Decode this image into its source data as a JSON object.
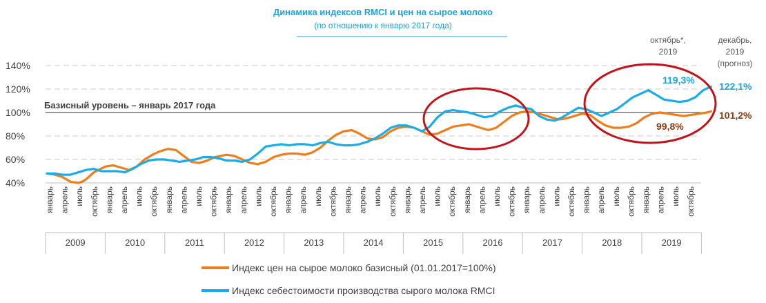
{
  "chart_data": {
    "type": "line",
    "title": "Динамика индексов RMCI и цен на сырое молоко",
    "subtitle": "(по отношению к январю 2017 года)",
    "y_ticks": [
      "40%",
      "60%",
      "80%",
      "100%",
      "120%",
      "140%"
    ],
    "ylim": [
      40,
      140
    ],
    "grid": "horizontal-dashed",
    "baseline": {
      "value": 100,
      "label": "Базисный уровень – январь 2017 года"
    },
    "month_tick_labels": [
      "январь",
      "апрель",
      "июль",
      "октябрь"
    ],
    "years": [
      "2009",
      "2010",
      "2011",
      "2012",
      "2013",
      "2014",
      "2015",
      "2016",
      "2017",
      "2018",
      "2019"
    ],
    "corner_labels": [
      {
        "lines": [
          "октябрь*,",
          "2019"
        ]
      },
      {
        "lines": [
          "декабрь,",
          "2019",
          "(прогноз)"
        ]
      }
    ],
    "value_labels": {
      "blue_oct": "119,3%",
      "blue_dec": "122,1%",
      "orange_oct": "99,8%",
      "orange_dec": "101,2%"
    },
    "legend_position": "bottom",
    "series": [
      {
        "name": "Индекс цен на сырое молоко базисный (01.01.2017=100%)",
        "color": "#f07d1a",
        "key_points": [
          [
            0,
            48
          ],
          [
            2,
            47
          ],
          [
            4,
            45
          ],
          [
            6,
            41
          ],
          [
            8,
            40
          ],
          [
            9,
            41
          ],
          [
            10,
            43
          ],
          [
            12,
            49
          ],
          [
            15,
            54
          ],
          [
            17,
            55
          ],
          [
            19,
            53
          ],
          [
            21,
            51
          ],
          [
            23,
            54
          ],
          [
            25,
            60
          ],
          [
            27,
            64
          ],
          [
            29,
            67
          ],
          [
            31,
            69
          ],
          [
            33,
            68
          ],
          [
            35,
            63
          ],
          [
            37,
            58
          ],
          [
            39,
            57
          ],
          [
            41,
            59
          ],
          [
            43,
            62
          ],
          [
            46,
            64
          ],
          [
            48,
            63
          ],
          [
            50,
            60
          ],
          [
            52,
            57
          ],
          [
            54,
            56
          ],
          [
            56,
            58
          ],
          [
            58,
            62
          ],
          [
            60,
            64
          ],
          [
            62,
            65
          ],
          [
            64,
            65
          ],
          [
            66,
            64
          ],
          [
            68,
            66
          ],
          [
            70,
            70
          ],
          [
            72,
            76
          ],
          [
            74,
            81
          ],
          [
            76,
            84
          ],
          [
            78,
            85
          ],
          [
            80,
            82
          ],
          [
            82,
            78
          ],
          [
            84,
            77
          ],
          [
            86,
            79
          ],
          [
            88,
            84
          ],
          [
            90,
            87
          ],
          [
            92,
            88
          ],
          [
            94,
            87
          ],
          [
            96,
            84
          ],
          [
            98,
            81
          ],
          [
            100,
            82
          ],
          [
            102,
            85
          ],
          [
            104,
            88
          ],
          [
            106,
            89
          ],
          [
            108,
            90
          ],
          [
            109,
            89
          ],
          [
            111,
            87
          ],
          [
            113,
            85
          ],
          [
            115,
            87
          ],
          [
            117,
            92
          ],
          [
            119,
            97
          ],
          [
            121,
            100
          ],
          [
            123,
            101
          ],
          [
            125,
            100
          ],
          [
            127,
            98
          ],
          [
            129,
            96
          ],
          [
            131,
            94
          ],
          [
            133,
            95
          ],
          [
            135,
            97
          ],
          [
            137,
            99
          ],
          [
            139,
            98
          ],
          [
            141,
            93
          ],
          [
            143,
            89
          ],
          [
            145,
            87
          ],
          [
            147,
            87
          ],
          [
            149,
            88
          ],
          [
            151,
            91
          ],
          [
            153,
            96
          ],
          [
            155,
            99
          ],
          [
            157,
            100
          ],
          [
            159,
            99
          ],
          [
            161,
            98
          ],
          [
            163,
            97
          ],
          [
            165,
            98
          ],
          [
            167,
            99
          ],
          [
            169,
            100
          ],
          [
            170,
            101
          ]
        ]
      },
      {
        "name": "Индекс себестоимости производства сырого молока RMCI",
        "color": "#1aace6",
        "key_points": [
          [
            0,
            48
          ],
          [
            2,
            48
          ],
          [
            4,
            47
          ],
          [
            6,
            47
          ],
          [
            8,
            49
          ],
          [
            10,
            51
          ],
          [
            12,
            52
          ],
          [
            14,
            50
          ],
          [
            16,
            50
          ],
          [
            18,
            50
          ],
          [
            20,
            49
          ],
          [
            22,
            52
          ],
          [
            24,
            56
          ],
          [
            26,
            59
          ],
          [
            28,
            60
          ],
          [
            30,
            60
          ],
          [
            32,
            59
          ],
          [
            34,
            58
          ],
          [
            36,
            59
          ],
          [
            38,
            60
          ],
          [
            40,
            62
          ],
          [
            42,
            62
          ],
          [
            44,
            61
          ],
          [
            46,
            59
          ],
          [
            48,
            59
          ],
          [
            50,
            58
          ],
          [
            52,
            60
          ],
          [
            54,
            65
          ],
          [
            56,
            71
          ],
          [
            58,
            72
          ],
          [
            60,
            73
          ],
          [
            62,
            72
          ],
          [
            64,
            73
          ],
          [
            66,
            73
          ],
          [
            68,
            72
          ],
          [
            70,
            74
          ],
          [
            72,
            75
          ],
          [
            74,
            73
          ],
          [
            76,
            72
          ],
          [
            78,
            72
          ],
          [
            80,
            73
          ],
          [
            82,
            75
          ],
          [
            84,
            78
          ],
          [
            86,
            82
          ],
          [
            88,
            87
          ],
          [
            90,
            89
          ],
          [
            92,
            89
          ],
          [
            94,
            87
          ],
          [
            96,
            84
          ],
          [
            98,
            88
          ],
          [
            100,
            96
          ],
          [
            102,
            101
          ],
          [
            104,
            102
          ],
          [
            106,
            101
          ],
          [
            108,
            100
          ],
          [
            110,
            98
          ],
          [
            112,
            96
          ],
          [
            114,
            97
          ],
          [
            116,
            101
          ],
          [
            118,
            104
          ],
          [
            120,
            106
          ],
          [
            122,
            104
          ],
          [
            124,
            103
          ],
          [
            126,
            97
          ],
          [
            128,
            94
          ],
          [
            130,
            93
          ],
          [
            132,
            96
          ],
          [
            134,
            100
          ],
          [
            136,
            104
          ],
          [
            138,
            103
          ],
          [
            140,
            100
          ],
          [
            142,
            97
          ],
          [
            144,
            100
          ],
          [
            146,
            103
          ],
          [
            148,
            108
          ],
          [
            150,
            113
          ],
          [
            152,
            116
          ],
          [
            154,
            119
          ],
          [
            156,
            115
          ],
          [
            158,
            111
          ],
          [
            160,
            110
          ],
          [
            162,
            109
          ],
          [
            164,
            110
          ],
          [
            166,
            113
          ],
          [
            168,
            119
          ],
          [
            170,
            122
          ]
        ]
      }
    ],
    "annotations": [
      {
        "type": "ellipse",
        "around": "2015-2016"
      },
      {
        "type": "ellipse",
        "around": "2018-2019"
      }
    ]
  }
}
